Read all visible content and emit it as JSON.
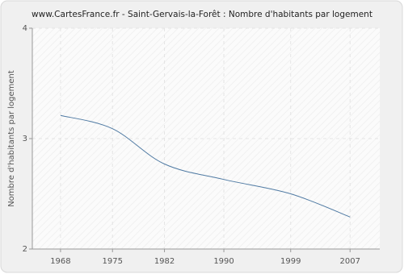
{
  "chart_data": {
    "type": "line",
    "title": "www.CartesFrance.fr - Saint-Gervais-la-Forêt : Nombre d'habitants par logement",
    "y_label": "Nombre d'habitants par logement",
    "x": [
      1968,
      1975,
      1982,
      1990,
      1999,
      2007
    ],
    "series": [
      {
        "name": "Nombre d'habitants par logement",
        "color": "#4f7aa3",
        "values": [
          3.21,
          3.09,
          2.77,
          2.63,
          2.5,
          2.29
        ]
      }
    ],
    "xlim": [
      1964.2,
      2011
    ],
    "xticks": [
      1968,
      1975,
      1982,
      1990,
      1999,
      2007
    ],
    "ylim": [
      2,
      4
    ],
    "yticks": [
      2,
      3,
      4
    ],
    "grid": true
  }
}
